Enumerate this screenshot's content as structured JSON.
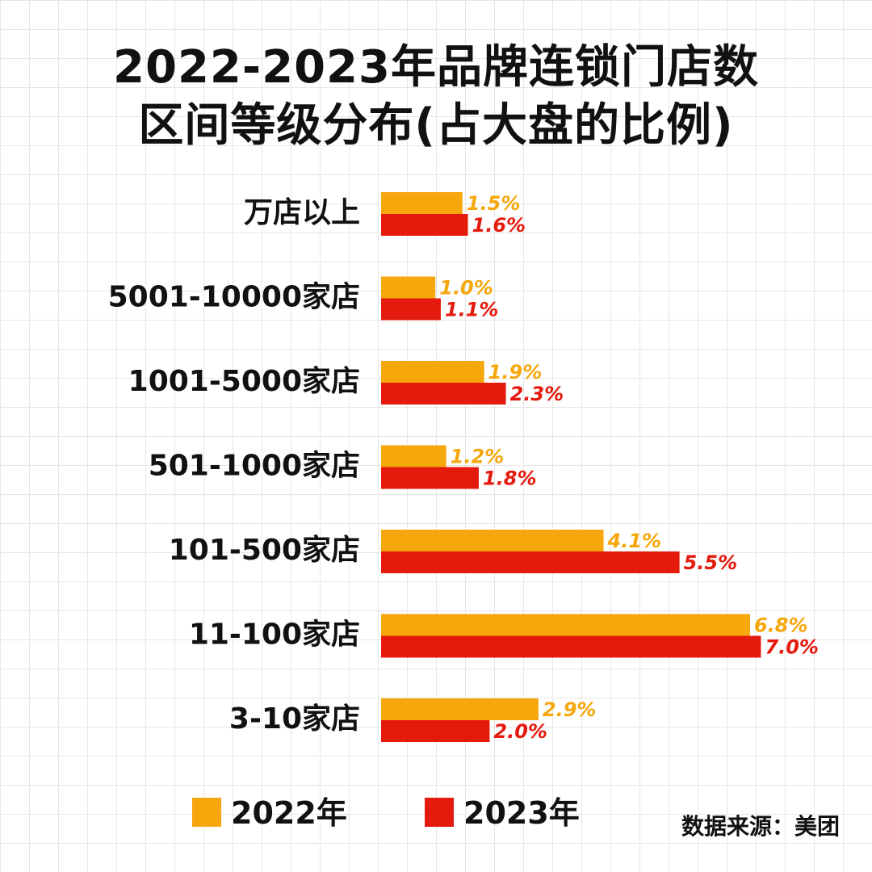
{
  "title": {
    "line1": "2022-2023年品牌连锁门店数",
    "line2": "区间等级分布(占大盘的比例)"
  },
  "colors": {
    "2022": "#F5A70C",
    "2023": "#E41A0C",
    "grid": "#E6E6E6"
  },
  "chart_data": {
    "type": "bar",
    "orientation": "horizontal",
    "title": "2022-2023年品牌连锁门店数区间等级分布(占大盘的比例)",
    "categories": [
      "万店以上",
      "5001-10000家店",
      "1001-5000家店",
      "501-1000家店",
      "101-500家店",
      "11-100家店",
      "3-10家店"
    ],
    "series": [
      {
        "name": "2022年",
        "values": [
          1.5,
          1.0,
          1.9,
          1.2,
          4.1,
          6.8,
          2.9
        ],
        "labels": [
          "1.5%",
          "1.0%",
          "1.9%",
          "1.2%",
          "4.1%",
          "6.8%",
          "2.9%"
        ]
      },
      {
        "name": "2023年",
        "values": [
          1.6,
          1.1,
          2.3,
          1.8,
          5.5,
          7.0,
          2.0
        ],
        "labels": [
          "1.6%",
          "1.1%",
          "2.3%",
          "1.8%",
          "5.5%",
          "7.0%",
          "2.0%"
        ]
      }
    ],
    "unit": "%",
    "xlim": [
      0,
      7.0
    ],
    "grid": true,
    "legend": "bottom"
  },
  "legend": {
    "items": [
      {
        "label": "2022年"
      },
      {
        "label": "2023年"
      }
    ]
  },
  "source": "数据来源：美团"
}
